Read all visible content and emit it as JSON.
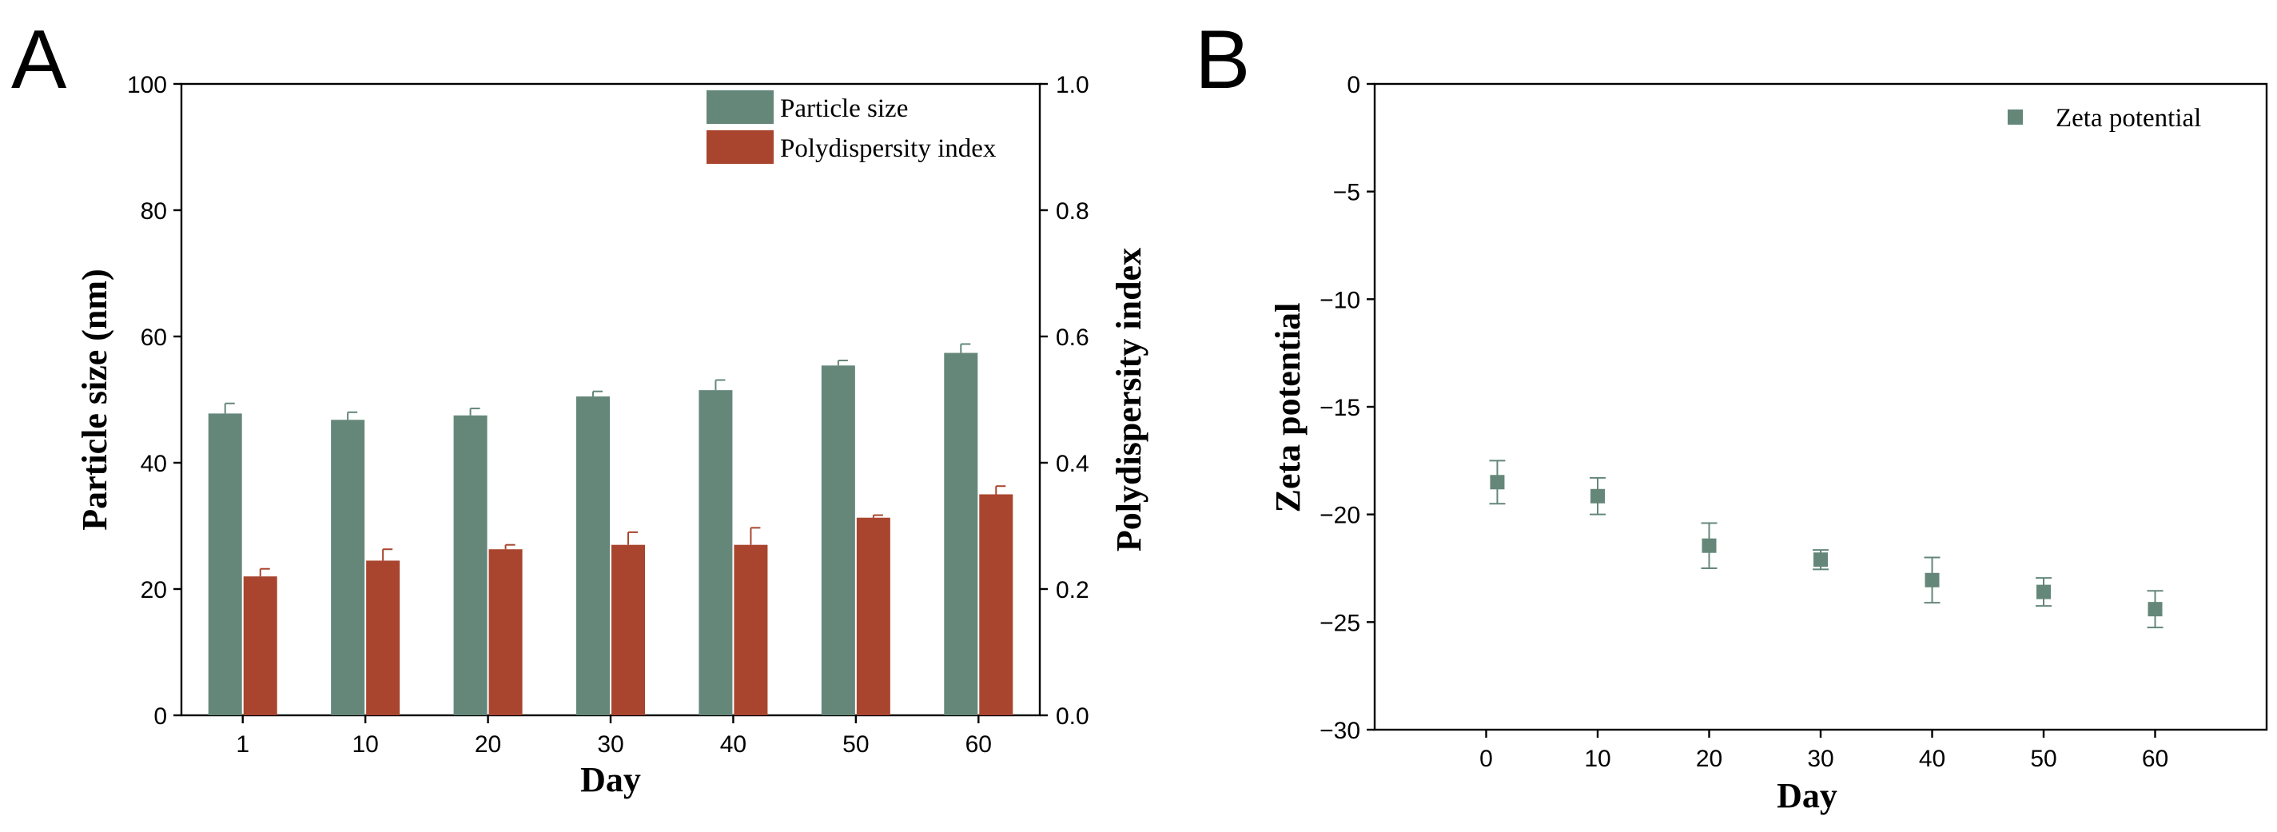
{
  "colors": {
    "particle_size": "#64877a",
    "pdi": "#a9452e",
    "zeta": "#64877a",
    "axis": "#000000"
  },
  "chart_data": [
    {
      "panel": "A",
      "type": "bar",
      "title": "",
      "xlabel": "Day",
      "ylabel": "Particle size (nm)",
      "y2label": "Polydispersity index",
      "categories": [
        "1",
        "10",
        "20",
        "30",
        "40",
        "50",
        "60"
      ],
      "ylim": [
        0,
        100
      ],
      "y2lim": [
        0.0,
        1.0
      ],
      "yticks": [
        "0",
        "20",
        "40",
        "60",
        "80",
        "100"
      ],
      "y2ticks": [
        "0.0",
        "0.2",
        "0.4",
        "0.6",
        "0.8",
        "1.0"
      ],
      "legend_position": "top-right",
      "series": [
        {
          "name": "Particle size",
          "axis": "left",
          "values": [
            47.8,
            46.8,
            47.5,
            50.5,
            51.5,
            55.4,
            57.4
          ],
          "errors": [
            1.6,
            1.2,
            1.1,
            0.8,
            1.6,
            0.8,
            1.4
          ]
        },
        {
          "name": "Polydispersity index",
          "axis": "right",
          "values": [
            0.22,
            0.245,
            0.263,
            0.27,
            0.27,
            0.313,
            0.35
          ],
          "errors": [
            0.012,
            0.018,
            0.007,
            0.02,
            0.027,
            0.004,
            0.013
          ]
        }
      ]
    },
    {
      "panel": "B",
      "type": "scatter",
      "title": "",
      "xlabel": "Day",
      "ylabel": "Zeta potential",
      "xlim": [
        -10,
        70
      ],
      "ylim": [
        -30,
        0
      ],
      "xticks": [
        "0",
        "10",
        "20",
        "30",
        "40",
        "50",
        "60"
      ],
      "yticks": [
        "0",
        "−5",
        "−10",
        "−15",
        "−20",
        "−25",
        "−30"
      ],
      "legend_position": "top-right",
      "series": [
        {
          "name": "Zeta potential",
          "x": [
            1,
            10,
            20,
            30,
            40,
            50,
            60
          ],
          "y": [
            -18.5,
            -19.15,
            -21.45,
            -22.1,
            -23.05,
            -23.6,
            -24.4
          ],
          "errors": [
            1.0,
            0.85,
            1.05,
            0.45,
            1.05,
            0.65,
            0.85
          ]
        }
      ]
    }
  ]
}
